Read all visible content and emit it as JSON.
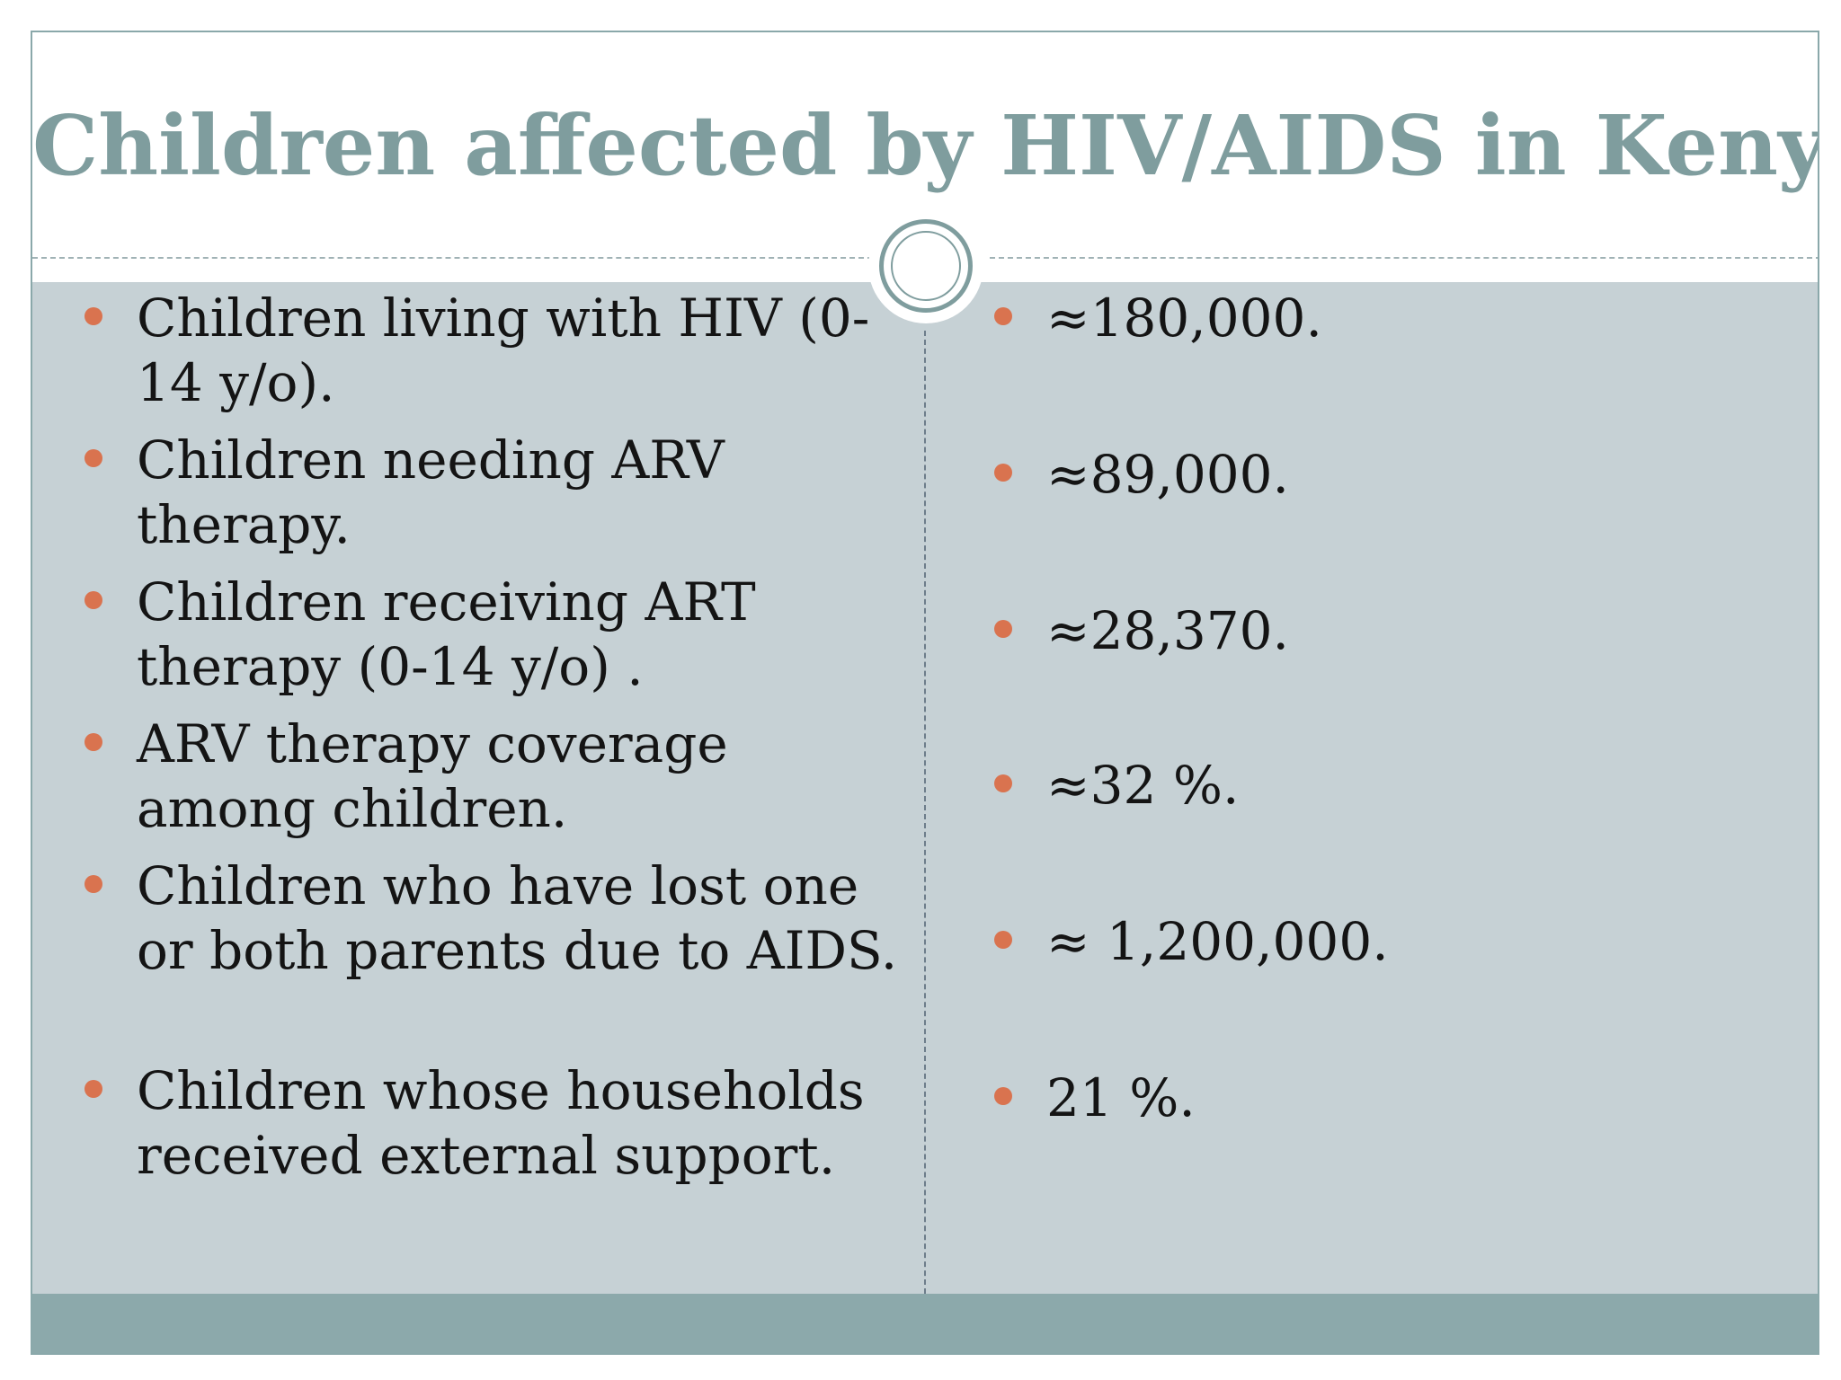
{
  "slide": {
    "title": "Children affected by HIV/AIDS in Kenya"
  },
  "indicators": [
    {
      "label": "Children living with HIV (0-14 y/o).",
      "value": "≈180,000."
    },
    {
      "label": "Children needing ARV therapy.",
      "value": "≈89,000."
    },
    {
      "label": "Children receiving  ART therapy (0-14 y/o) .",
      "value": "≈28,370."
    },
    {
      "label": "ARV therapy coverage among children.",
      "value": "≈32 %."
    },
    {
      "label": "Children who have lost one or both parents due to AIDS.",
      "value": "≈ 1,200,000."
    },
    {
      "label": "Children whose households received external support.",
      "value": "21 %."
    }
  ],
  "colors": {
    "title": "#7f9d9e",
    "content_background": "#c6d1d5",
    "footer_bar": "#8ca9ab",
    "bullet": "#d9734f",
    "text": "#141414"
  },
  "icons": {
    "title_ornament": "double-circle-icon",
    "bullet": "dot-bullet-icon"
  }
}
